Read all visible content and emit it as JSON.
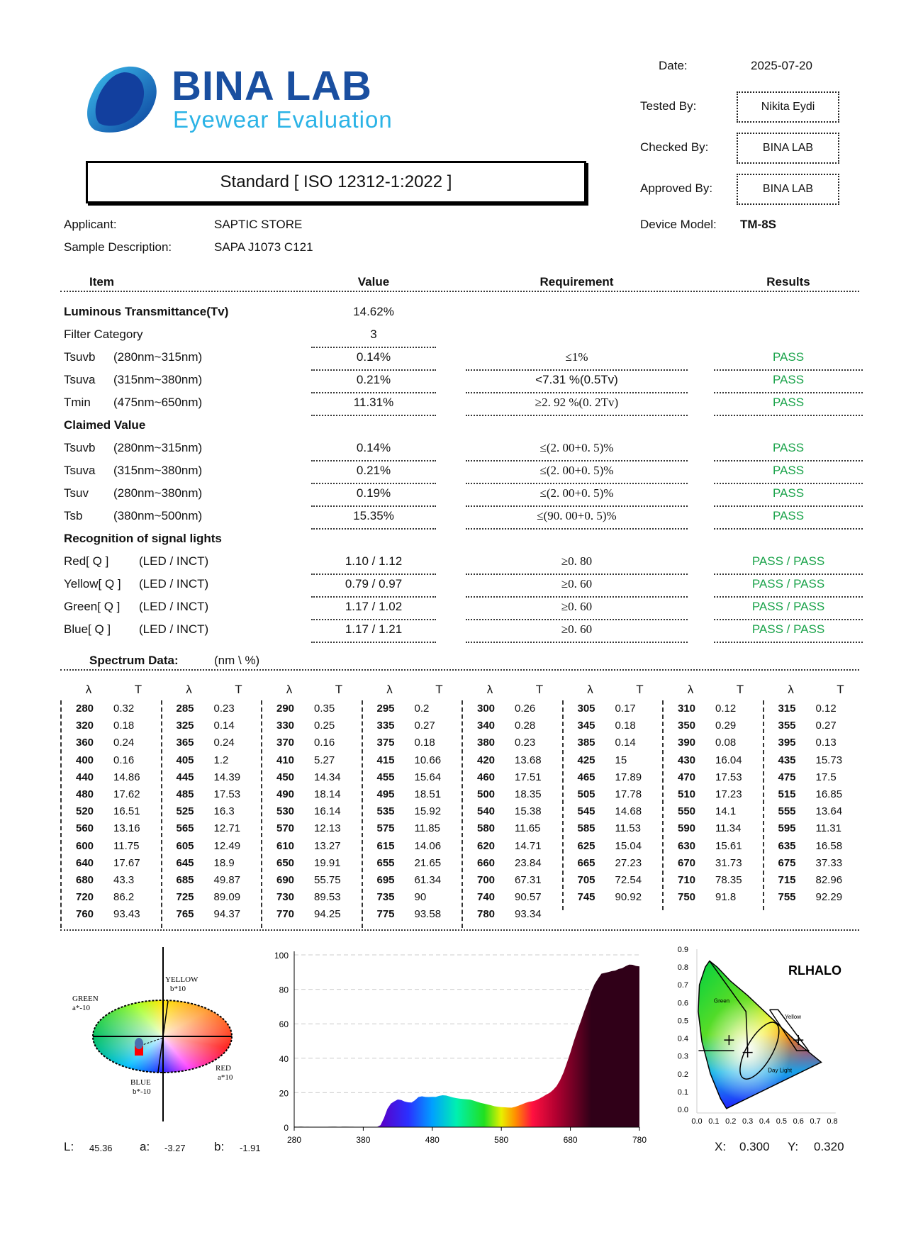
{
  "logo": {
    "name": "BINA LAB",
    "tagline": "Eyewear Evaluation",
    "brand_color": "#1a4fa0",
    "tagline_color": "#2bb3e6"
  },
  "meta": {
    "date_label": "Date:",
    "date": "2025-07-20",
    "tested_by_label": "Tested By:",
    "tested_by": "Nikita Eydi",
    "checked_by_label": "Checked By:",
    "checked_by": "BINA LAB",
    "approved_by_label": "Approved By:",
    "approved_by": "BINA LAB",
    "device_model_label": "Device Model:",
    "device_model": "TM-8S"
  },
  "standard": "Standard [ ISO 12312-1:2022 ]",
  "applicant_label": "Applicant:",
  "applicant": "SAPTIC STORE",
  "sample_label": "Sample Description:",
  "sample": "SAPA J1073 C121",
  "table_headers": {
    "item": "Item",
    "value": "Value",
    "requirement": "Requirement",
    "results": "Results"
  },
  "pass_color": "#1aa34a",
  "rows": [
    {
      "type": "section",
      "label": "Luminous Transmittance(Tv)",
      "value": "14.62%"
    },
    {
      "type": "row",
      "label": "Filter Category",
      "range": "",
      "value": "3",
      "requirement": "",
      "result": ""
    },
    {
      "type": "row",
      "label": "Tsuvb",
      "range": "(280nm~315nm)",
      "value": "0.14%",
      "requirement": "≤1%",
      "serif": true,
      "result": "PASS"
    },
    {
      "type": "row",
      "label": "Tsuva",
      "range": "(315nm~380nm)",
      "value": "0.21%",
      "requirement": "<7.31 %(0.5Tv)",
      "serif": false,
      "result": "PASS"
    },
    {
      "type": "row",
      "label": "Tmin",
      "range": "(475nm~650nm)",
      "value": "11.31%",
      "requirement": "≥2. 92 %(0. 2Tv)",
      "serif": true,
      "result": "PASS"
    },
    {
      "type": "section",
      "label": "Claimed Value",
      "value": ""
    },
    {
      "type": "row",
      "label": "Tsuvb",
      "range": "(280nm~315nm)",
      "value": "0.14%",
      "requirement": "≤(2. 00+0. 5)%",
      "serif": true,
      "result": "PASS"
    },
    {
      "type": "row",
      "label": "Tsuva",
      "range": "(315nm~380nm)",
      "value": "0.21%",
      "requirement": "≤(2. 00+0. 5)%",
      "serif": true,
      "result": "PASS"
    },
    {
      "type": "row",
      "label": "Tsuv",
      "range": "(280nm~380nm)",
      "value": "0.19%",
      "requirement": "≤(2. 00+0. 5)%",
      "serif": true,
      "result": "PASS"
    },
    {
      "type": "row",
      "label": "Tsb",
      "range": "(380nm~500nm)",
      "value": "15.35%",
      "requirement": "≤(90. 00+0. 5)%",
      "serif": true,
      "result": "PASS"
    },
    {
      "type": "section",
      "label": "Recognition of signal lights",
      "value": ""
    },
    {
      "type": "signal",
      "label": "Red[ Q ]",
      "range": "(LED / INCT)",
      "value": "1.10 / 1.12",
      "requirement": "≥0. 80",
      "serif": true,
      "result": "PASS / PASS"
    },
    {
      "type": "signal",
      "label": "Yellow[ Q ]",
      "range": "(LED / INCT)",
      "value": "0.79 / 0.97",
      "requirement": "≥0. 60",
      "serif": true,
      "result": "PASS / PASS"
    },
    {
      "type": "signal",
      "label": "Green[ Q ]",
      "range": "(LED / INCT)",
      "value": "1.17 / 1.02",
      "requirement": "≥0. 60",
      "serif": true,
      "result": "PASS / PASS"
    },
    {
      "type": "signal",
      "label": "Blue[ Q ]",
      "range": "(LED / INCT)",
      "value": "1.17 / 1.21",
      "requirement": "≥0. 60",
      "serif": true,
      "result": "PASS / PASS"
    }
  ],
  "spectrum_title": "Spectrum Data:",
  "spectrum_unit": "(nm \\  %)",
  "spectrum_col_headers": {
    "wavelength": "λ",
    "transmittance": "T"
  },
  "lab": {
    "L_label": "L:",
    "L": "45.36",
    "a_label": "a:",
    "a": "-3.27",
    "b_label": "b:",
    "b": "-1.91",
    "axis_labels": {
      "yellow": "YELLOW",
      "yellow_sub": "b*10",
      "green": "GREEN",
      "green_sub": "a*-10",
      "red": "RED",
      "red_sub": "a*10",
      "blue": "BLUE",
      "blue_sub": "b*-10"
    }
  },
  "cie": {
    "title": "RLHALO",
    "x_label": "X:",
    "x": "0.300",
    "y_label": "Y:",
    "y": "0.320",
    "x_ticks": [
      "0.0",
      "0.1",
      "0.2",
      "0.3",
      "0.4",
      "0.5",
      "0.6",
      "0.7",
      "0.8"
    ],
    "y_ticks": [
      "0.0",
      "0.1",
      "0.2",
      "0.3",
      "0.4",
      "0.5",
      "0.6",
      "0.7",
      "0.8",
      "0.9"
    ],
    "region_labels": {
      "green": "Green",
      "yellow": "Yellow",
      "daylight": "Day Light"
    }
  },
  "chart_data": {
    "type": "area",
    "title": "",
    "xlabel": "",
    "ylabel": "",
    "xlim": [
      280,
      780
    ],
    "ylim": [
      0,
      100
    ],
    "x_ticks": [
      280,
      380,
      480,
      580,
      680,
      780
    ],
    "y_ticks": [
      0,
      20,
      40,
      60,
      80,
      100
    ],
    "grid": "horizontal dashed",
    "fill": "visible-spectrum gradient",
    "x": [
      280,
      285,
      290,
      295,
      300,
      305,
      310,
      315,
      320,
      325,
      330,
      335,
      340,
      345,
      350,
      355,
      360,
      365,
      370,
      375,
      380,
      385,
      390,
      395,
      400,
      405,
      410,
      415,
      420,
      425,
      430,
      435,
      440,
      445,
      450,
      455,
      460,
      465,
      470,
      475,
      480,
      485,
      490,
      495,
      500,
      505,
      510,
      515,
      520,
      525,
      530,
      535,
      540,
      545,
      550,
      555,
      560,
      565,
      570,
      575,
      580,
      585,
      590,
      595,
      600,
      605,
      610,
      615,
      620,
      625,
      630,
      635,
      640,
      645,
      650,
      655,
      660,
      665,
      670,
      675,
      680,
      685,
      690,
      695,
      700,
      705,
      710,
      715,
      720,
      725,
      730,
      735,
      740,
      745,
      750,
      755,
      760,
      765,
      770,
      775,
      780
    ],
    "values": [
      0.32,
      0.23,
      0.35,
      0.2,
      0.26,
      0.17,
      0.12,
      0.12,
      0.18,
      0.14,
      0.25,
      0.27,
      0.28,
      0.18,
      0.29,
      0.27,
      0.24,
      0.24,
      0.16,
      0.18,
      0.23,
      0.14,
      0.08,
      0.13,
      0.16,
      1.2,
      5.27,
      10.66,
      13.68,
      15.0,
      16.04,
      15.73,
      14.86,
      14.39,
      14.34,
      15.64,
      17.51,
      17.89,
      17.53,
      17.5,
      17.62,
      17.53,
      18.14,
      18.51,
      18.35,
      17.78,
      17.23,
      16.85,
      16.51,
      16.3,
      16.14,
      15.92,
      15.38,
      14.68,
      14.1,
      13.64,
      13.16,
      12.71,
      12.13,
      11.85,
      11.65,
      11.53,
      11.34,
      11.31,
      11.75,
      12.49,
      13.27,
      14.06,
      14.71,
      15.04,
      15.61,
      16.58,
      17.67,
      18.9,
      19.91,
      21.65,
      23.84,
      27.23,
      31.73,
      37.33,
      43.3,
      49.87,
      55.75,
      61.34,
      67.31,
      72.54,
      78.35,
      82.96,
      86.2,
      89.09,
      89.53,
      90.0,
      90.57,
      90.92,
      91.8,
      92.29,
      93.43,
      94.37,
      94.25,
      93.58,
      93.34
    ]
  }
}
